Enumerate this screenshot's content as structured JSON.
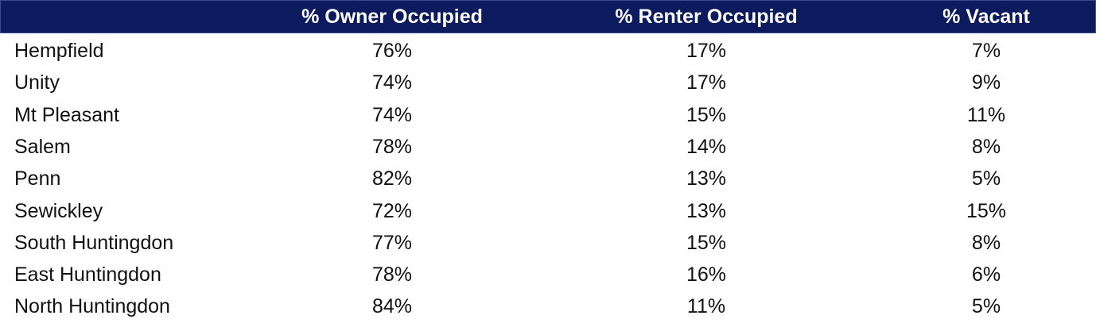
{
  "table": {
    "header": [
      "% Owner Occupied",
      "% Renter Occupied",
      "% Vacant"
    ],
    "rows": [
      [
        "Hempfield",
        "76%",
        "17%",
        "7%"
      ],
      [
        "Unity",
        "74%",
        "17%",
        "9%"
      ],
      [
        "Mt Pleasant",
        "74%",
        "15%",
        "11%"
      ],
      [
        "Salem",
        "78%",
        "14%",
        "8%"
      ],
      [
        "Penn",
        "82%",
        "13%",
        "5%"
      ],
      [
        "Sewickley",
        "72%",
        "13%",
        "15%"
      ],
      [
        "South Huntingdon",
        "77%",
        "15%",
        "8%"
      ],
      [
        "East Huntingdon",
        "78%",
        "16%",
        "6%"
      ],
      [
        "North Huntingdon",
        "84%",
        "11%",
        "5%"
      ]
    ]
  }
}
